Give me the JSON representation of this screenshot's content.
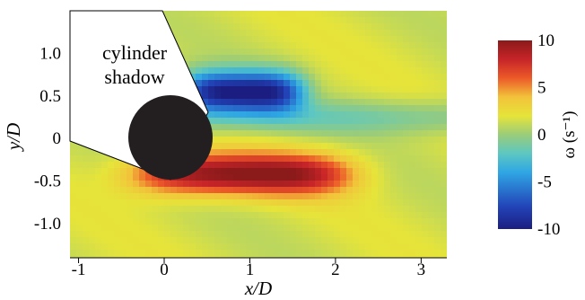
{
  "chart_data": {
    "type": "heatmap",
    "title": "",
    "xlabel": "x/D",
    "ylabel": "y/D",
    "xlim": [
      -1.1,
      3.3
    ],
    "ylim": [
      -1.4,
      1.5
    ],
    "x_ticks": [
      {
        "value": -1,
        "label": "-1"
      },
      {
        "value": 0,
        "label": "0"
      },
      {
        "value": 1,
        "label": "1"
      },
      {
        "value": 2,
        "label": "2"
      },
      {
        "value": 3,
        "label": "3"
      }
    ],
    "y_ticks": [
      {
        "value": 1.0,
        "label": "1.0"
      },
      {
        "value": 0.5,
        "label": "0.5"
      },
      {
        "value": 0,
        "label": "0"
      },
      {
        "value": -0.5,
        "label": "-0.5"
      },
      {
        "value": -1.0,
        "label": "-1.0"
      }
    ],
    "colorbar": {
      "label": "ω   (s⁻¹)",
      "range": [
        -10,
        10
      ],
      "ticks": [
        {
          "value": 10,
          "label": "10"
        },
        {
          "value": 5,
          "label": "5"
        },
        {
          "value": 0,
          "label": "0"
        },
        {
          "value": -5,
          "label": "-5"
        },
        {
          "value": -10,
          "label": "-10"
        }
      ],
      "colormap": "jet"
    },
    "cylinder": {
      "center": [
        0,
        0
      ],
      "diameter": 1.0,
      "color": "#231f20"
    },
    "shadow_label": [
      "cylinder",
      "shadow"
    ],
    "vortex_structures": [
      {
        "sign": "negative",
        "peak_vorticity": -10,
        "center": [
          0.9,
          0.55
        ],
        "extent_x": [
          0.15,
          1.75
        ],
        "extent_y": [
          0.3,
          0.9
        ]
      },
      {
        "sign": "positive",
        "peak_vorticity": 10,
        "center": [
          0.9,
          -0.42
        ],
        "extent_x": [
          -0.8,
          2.1
        ],
        "extent_y": [
          -0.72,
          -0.1
        ]
      }
    ],
    "background_vorticity": 1.5
  }
}
